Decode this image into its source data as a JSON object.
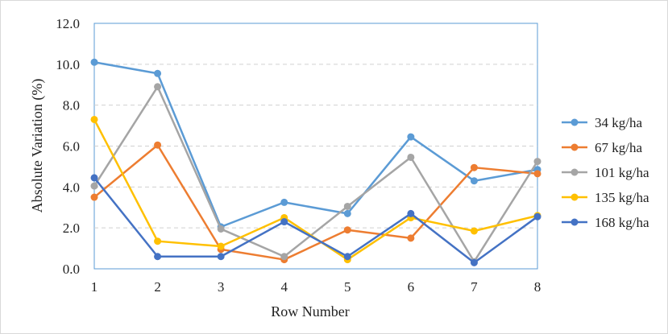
{
  "chart_data": {
    "type": "line",
    "title": "",
    "xlabel": "Row Number",
    "ylabel": "Absolute Variation (%)",
    "x": [
      1,
      2,
      3,
      4,
      5,
      6,
      7,
      8
    ],
    "ylim": [
      0,
      12
    ],
    "y_ticks": [
      "0.0",
      "2.0",
      "4.0",
      "6.0",
      "8.0",
      "10.0",
      "12.0"
    ],
    "grid": "horizontal dashed",
    "legend_position": "right",
    "series": [
      {
        "name": "34 kg/ha",
        "color": "#5B9BD5",
        "values": [
          10.1,
          9.55,
          2.05,
          3.25,
          2.7,
          6.45,
          4.3,
          4.85
        ]
      },
      {
        "name": "67 kg/ha",
        "color": "#ED7D31",
        "values": [
          3.5,
          6.05,
          0.95,
          0.45,
          1.9,
          1.5,
          4.95,
          4.65
        ]
      },
      {
        "name": "101 kg/ha",
        "color": "#A5A5A5",
        "values": [
          4.05,
          8.9,
          1.95,
          0.6,
          3.05,
          5.45,
          0.35,
          5.25
        ]
      },
      {
        "name": "135 kg/ha",
        "color": "#FFC000",
        "values": [
          7.3,
          1.35,
          1.1,
          2.5,
          0.45,
          2.5,
          1.85,
          2.6
        ]
      },
      {
        "name": "168 kg/ha",
        "color": "#4472C4",
        "values": [
          4.45,
          0.6,
          0.6,
          2.3,
          0.6,
          2.7,
          0.3,
          2.55
        ]
      }
    ]
  }
}
